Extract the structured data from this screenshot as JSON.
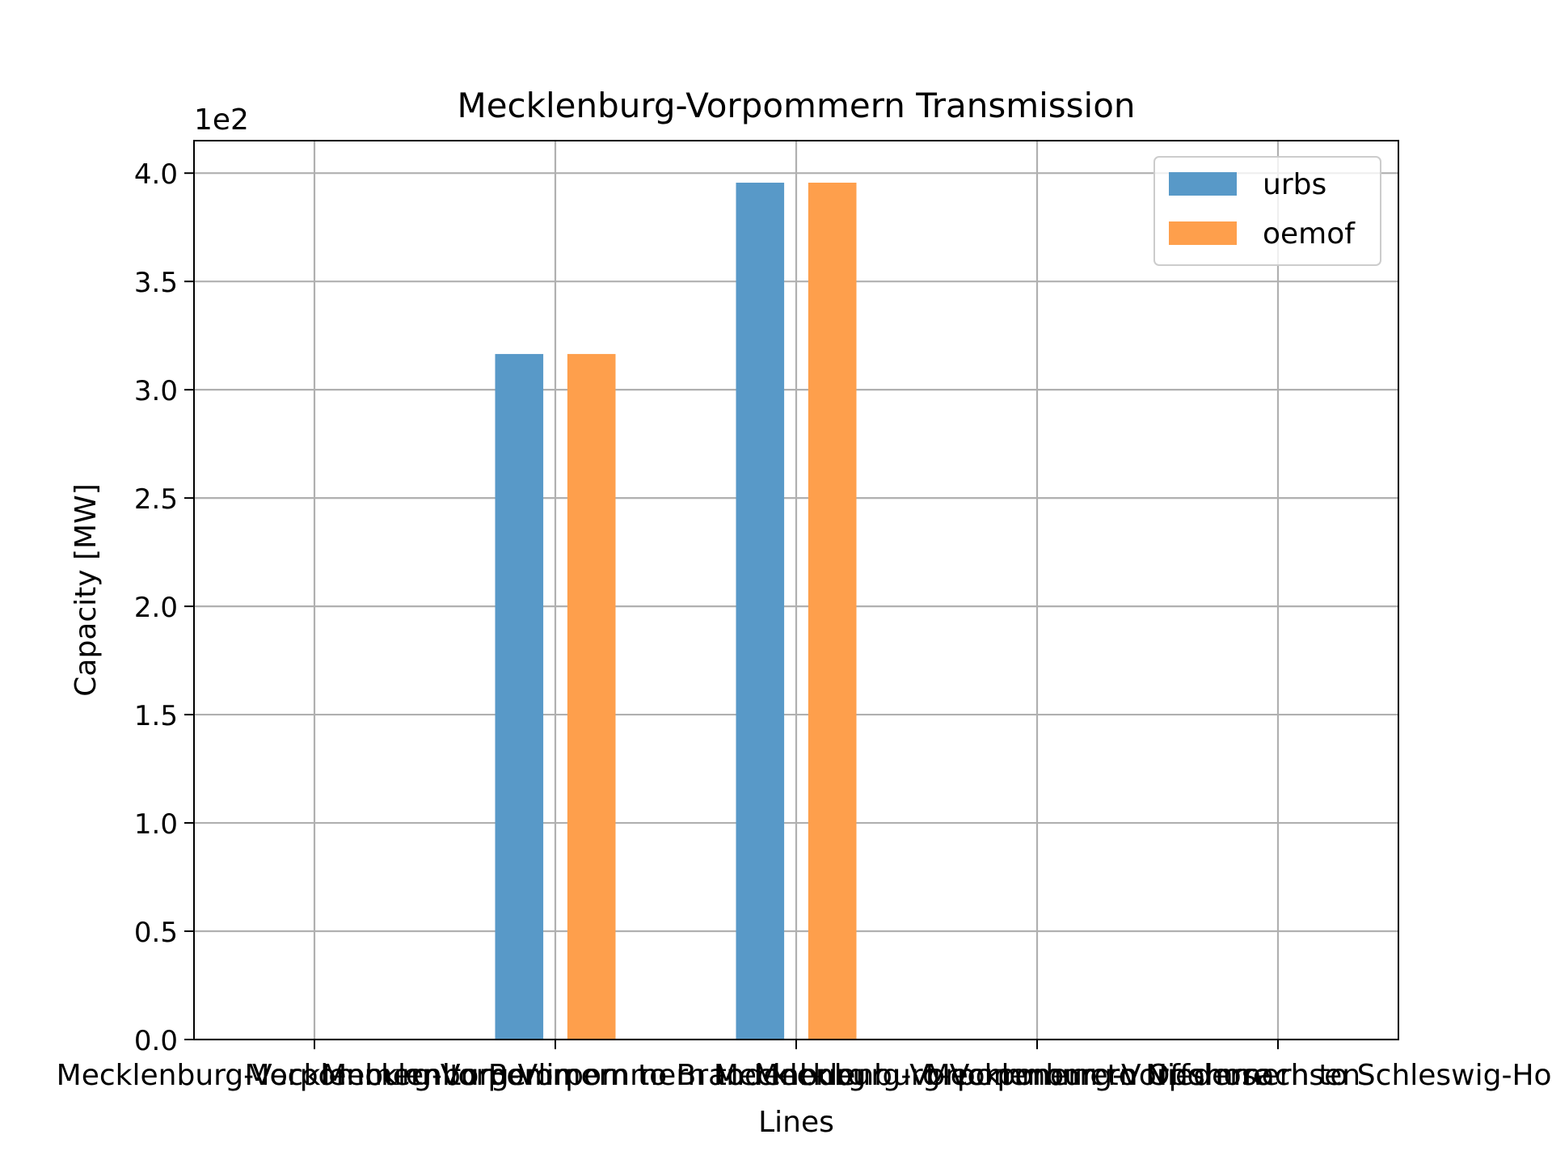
{
  "chart_data": {
    "type": "bar",
    "title": "Mecklenburg-Vorpommern Transmission",
    "xlabel": "Lines",
    "ylabel": "Capacity [MW]",
    "offset_text": "1e2",
    "categories": [
      "Mecklenburg-Vorpommern to Berlin",
      "Mecklenburg-Vorpommern to Brandenburg",
      "Mecklenburg-Vorpommern to Mecklenburg-Vorpommern Offshore",
      "Mecklenburg-Vorpommern to Niedersachsen",
      "Mecklenburg-Vorpommern to Schleswig-Holstein"
    ],
    "series": [
      {
        "name": "urbs",
        "color": "#5899c8",
        "values": [
          0,
          316.5,
          395.6,
          0,
          0
        ]
      },
      {
        "name": "oemof",
        "color": "#fe9f4c",
        "values": [
          0,
          316.5,
          395.6,
          0,
          0
        ]
      }
    ],
    "ylim": [
      0,
      415
    ],
    "yticks": [
      0,
      50,
      100,
      150,
      200,
      250,
      300,
      350,
      400
    ],
    "ytick_labels": [
      "0.0",
      "0.5",
      "1.0",
      "1.5",
      "2.0",
      "2.5",
      "3.0",
      "3.5",
      "4.0"
    ],
    "grid": true,
    "legend_position": "top-right"
  }
}
